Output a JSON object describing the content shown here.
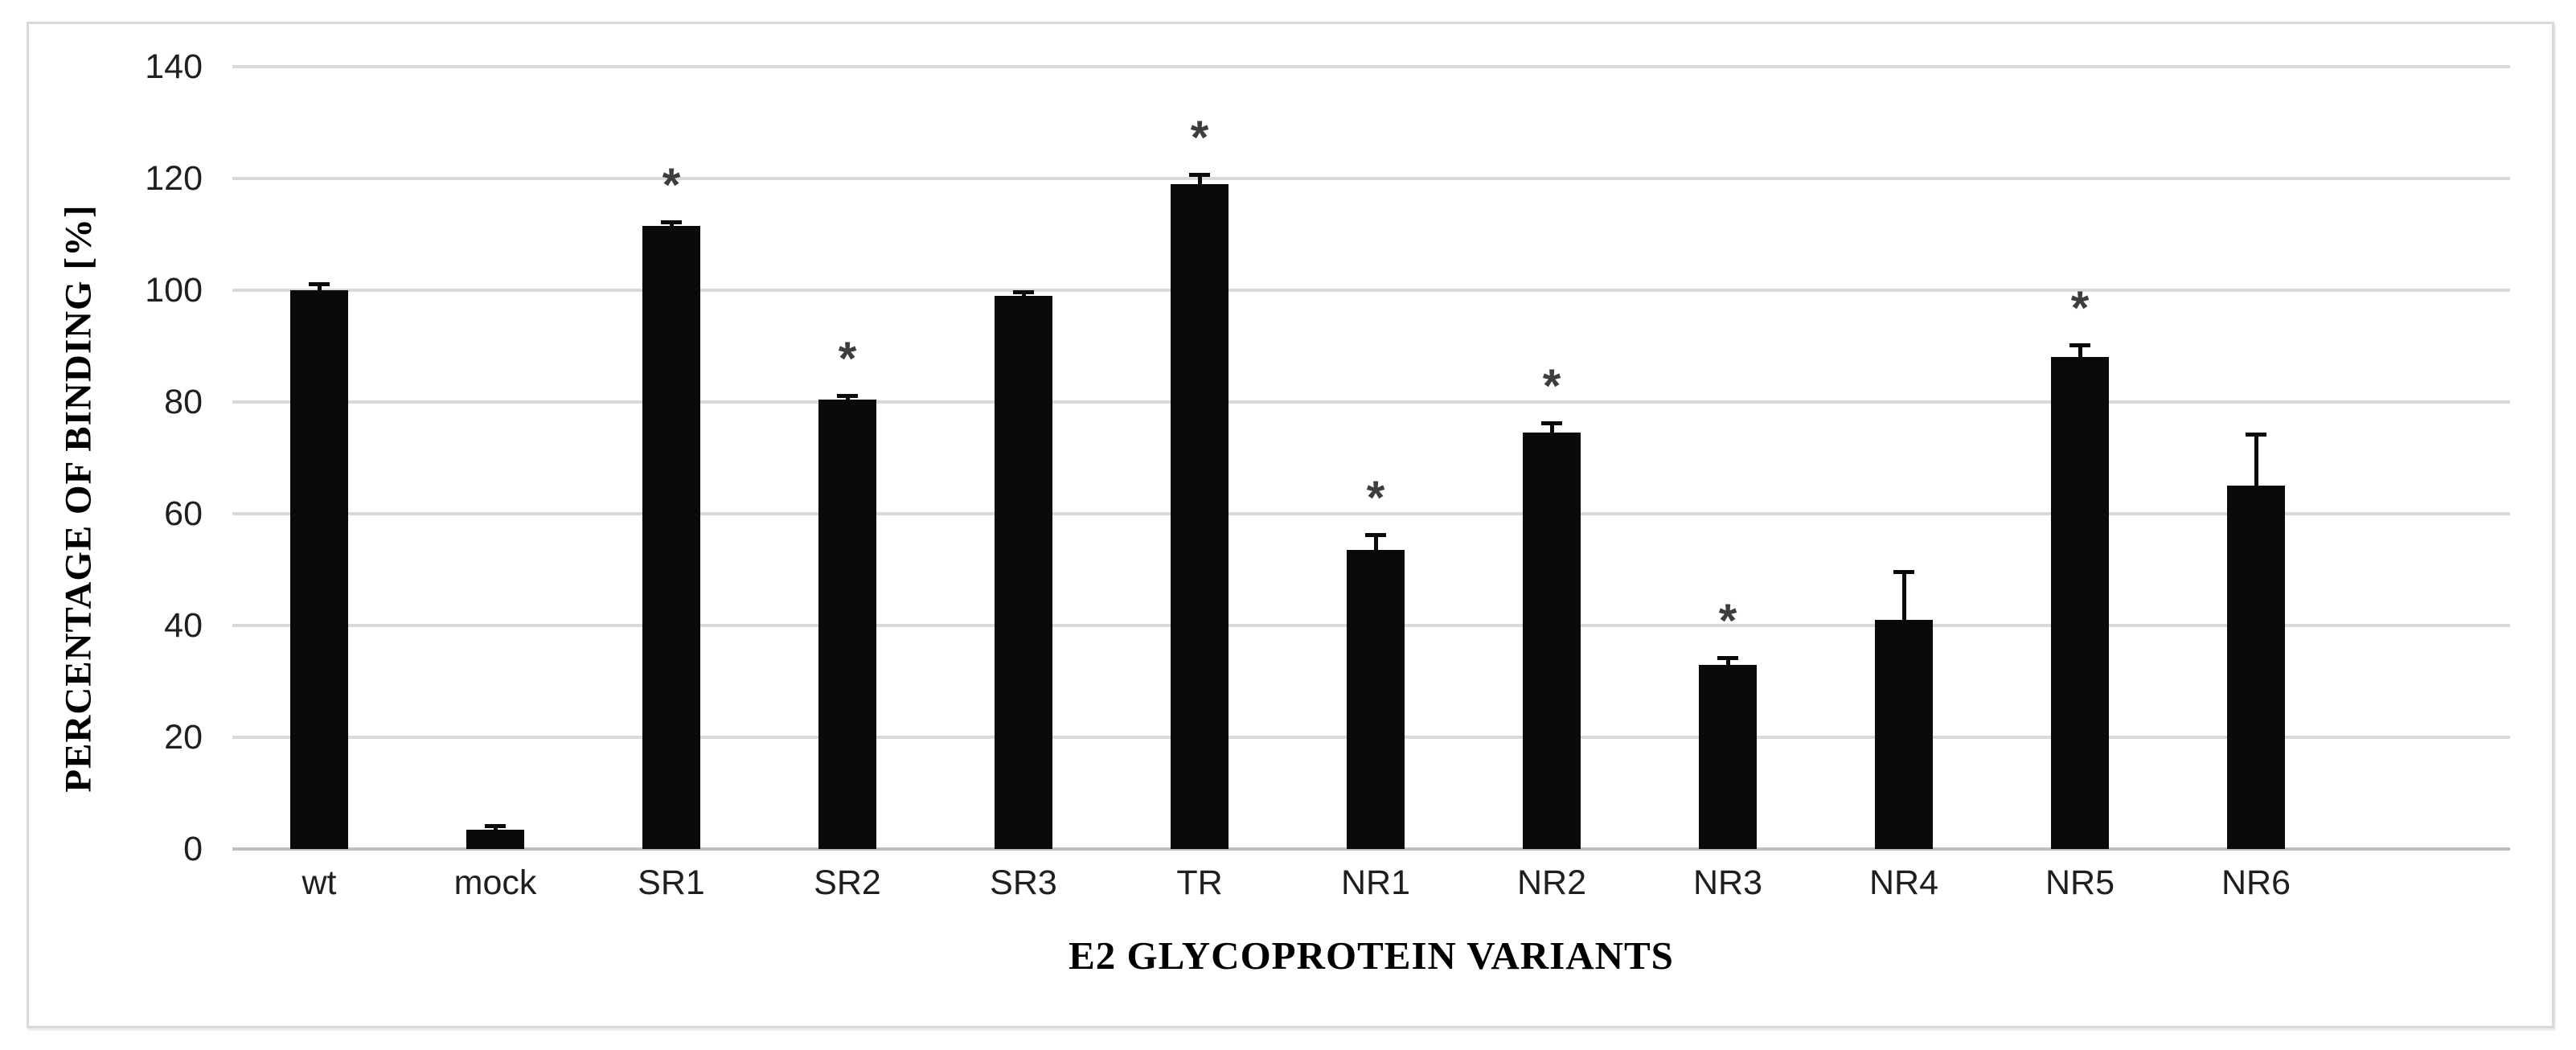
{
  "chart_data": {
    "type": "bar",
    "title": "",
    "xlabel": "E2 GLYCOPROTEIN VARIANTS",
    "ylabel": "PERCENTAGE OF BINDING [%]",
    "ylim": [
      0,
      140
    ],
    "y_ticks": [
      0,
      20,
      40,
      60,
      80,
      100,
      120,
      140
    ],
    "grid": true,
    "legend": "none",
    "categories": [
      "wt",
      "mock",
      "SR1",
      "SR2",
      "SR3",
      "TR",
      "NR1",
      "NR2",
      "NR3",
      "NR4",
      "NR5",
      "NR6"
    ],
    "values": [
      100,
      3.5,
      111.5,
      80.5,
      99,
      119,
      53.5,
      74.5,
      33,
      41,
      88,
      65
    ],
    "error_plus": [
      1.5,
      1,
      1,
      1,
      1,
      2,
      3,
      2,
      1.5,
      9,
      2.5,
      9.5
    ],
    "significant": [
      false,
      false,
      true,
      true,
      false,
      true,
      true,
      true,
      true,
      false,
      true,
      false
    ],
    "significance_symbol": "*",
    "bar_color": "#0a0a0a",
    "grid_color": "#d9d9d9",
    "axis_line_color": "#bfbfbf",
    "frame_border_color": "#d9d9d9",
    "text_color": "#1f1f1f"
  }
}
